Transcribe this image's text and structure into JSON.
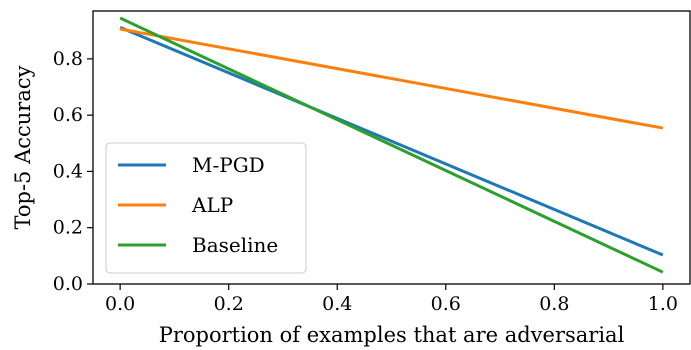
{
  "chart_data": {
    "type": "line",
    "title": "",
    "xlabel": "Proportion of examples that are adversarial",
    "ylabel": "Top-5 Accuracy",
    "xlim": [
      -0.05,
      1.05
    ],
    "ylim": [
      0.0,
      0.97
    ],
    "grid": false,
    "legend_position": "lower-left",
    "x_ticks": [
      "0.0",
      "0.2",
      "0.4",
      "0.6",
      "0.8",
      "1.0"
    ],
    "y_ticks": [
      "0.0",
      "0.2",
      "0.4",
      "0.6",
      "0.8"
    ],
    "series": [
      {
        "name": "M-PGD",
        "color": "#1f77b4",
        "x": [
          0.0,
          1.0
        ],
        "y": [
          0.912,
          0.103
        ]
      },
      {
        "name": "ALP",
        "color": "#ff7f0e",
        "x": [
          0.0,
          1.0
        ],
        "y": [
          0.906,
          0.554
        ]
      },
      {
        "name": "Baseline",
        "color": "#2ca02c",
        "x": [
          0.0,
          1.0
        ],
        "y": [
          0.945,
          0.042
        ]
      }
    ]
  }
}
